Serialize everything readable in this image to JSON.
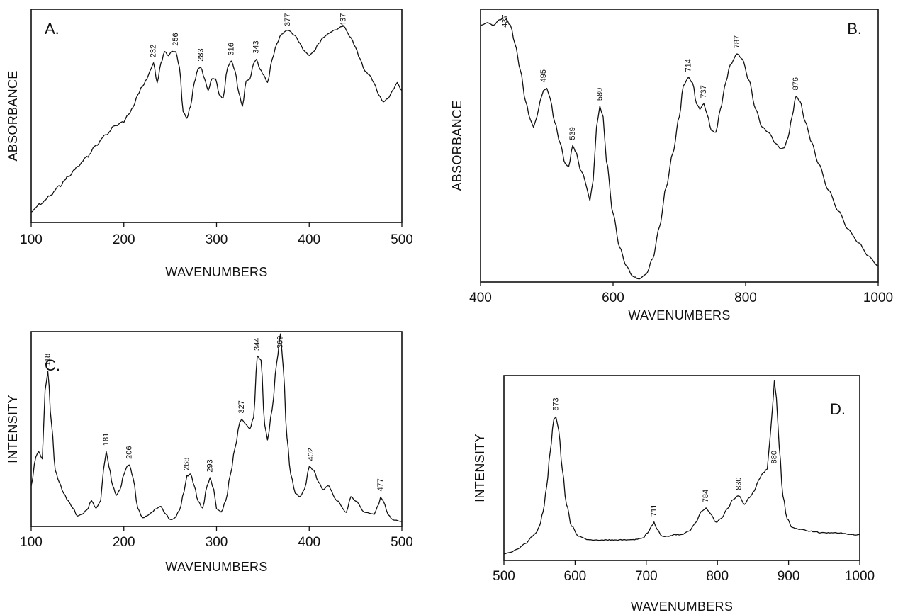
{
  "chart_data": [
    {
      "type": "line",
      "panel": "A.",
      "xlabel": "WAVENUMBERS",
      "ylabel": "ABSORBANCE",
      "xlim": [
        100,
        500
      ],
      "ylim": [
        0,
        1
      ],
      "xticks": [
        100,
        200,
        300,
        400,
        500
      ],
      "grid": false,
      "series": [
        {
          "x": [
            100,
            110,
            120,
            130,
            140,
            150,
            160,
            170,
            180,
            190,
            200,
            205,
            210,
            215,
            220,
            225,
            228,
            232,
            236,
            240,
            244,
            248,
            252,
            256,
            260,
            264,
            268,
            272,
            276,
            280,
            283,
            287,
            291,
            295,
            299,
            303,
            307,
            312,
            316,
            320,
            324,
            328,
            332,
            336,
            340,
            343,
            347,
            351,
            355,
            360,
            365,
            370,
            377,
            385,
            390,
            395,
            400,
            405,
            410,
            415,
            420,
            428,
            437,
            445,
            450,
            455,
            460,
            465,
            470,
            475,
            480,
            485,
            490,
            495,
            500
          ],
          "y": [
            0.04,
            0.08,
            0.12,
            0.17,
            0.22,
            0.27,
            0.32,
            0.38,
            0.43,
            0.48,
            0.5,
            0.54,
            0.58,
            0.64,
            0.68,
            0.72,
            0.76,
            0.8,
            0.7,
            0.8,
            0.86,
            0.84,
            0.86,
            0.86,
            0.78,
            0.55,
            0.52,
            0.58,
            0.7,
            0.77,
            0.78,
            0.72,
            0.66,
            0.72,
            0.72,
            0.64,
            0.62,
            0.78,
            0.81,
            0.76,
            0.65,
            0.58,
            0.71,
            0.72,
            0.8,
            0.82,
            0.77,
            0.74,
            0.7,
            0.82,
            0.9,
            0.95,
            0.97,
            0.94,
            0.9,
            0.86,
            0.84,
            0.86,
            0.9,
            0.93,
            0.95,
            0.97,
            0.99,
            0.93,
            0.88,
            0.82,
            0.76,
            0.74,
            0.7,
            0.64,
            0.6,
            0.62,
            0.66,
            0.7,
            0.66
          ]
        }
      ],
      "annotations": [
        {
          "x": 232,
          "y": 0.8,
          "text": "232"
        },
        {
          "x": 256,
          "y": 0.86,
          "text": "256"
        },
        {
          "x": 283,
          "y": 0.78,
          "text": "283"
        },
        {
          "x": 316,
          "y": 0.81,
          "text": "316"
        },
        {
          "x": 343,
          "y": 0.82,
          "text": "343"
        },
        {
          "x": 377,
          "y": 0.97,
          "text": "377"
        },
        {
          "x": 437,
          "y": 0.99,
          "text": "437"
        }
      ]
    },
    {
      "type": "line",
      "panel": "B.",
      "xlabel": "WAVENUMBERS",
      "ylabel": "ABSORBANCE",
      "xlim": [
        400,
        1000
      ],
      "ylim": [
        0,
        1
      ],
      "xticks": [
        400,
        600,
        800,
        1000
      ],
      "grid": false,
      "series": [
        {
          "x": [
            400,
            410,
            420,
            428,
            437,
            445,
            452,
            460,
            468,
            475,
            480,
            485,
            490,
            495,
            500,
            505,
            512,
            520,
            528,
            533,
            539,
            545,
            550,
            555,
            560,
            565,
            570,
            575,
            580,
            585,
            590,
            600,
            610,
            620,
            630,
            640,
            645,
            650,
            660,
            670,
            680,
            690,
            700,
            706,
            714,
            720,
            726,
            731,
            737,
            742,
            748,
            755,
            762,
            770,
            777,
            787,
            795,
            805,
            815,
            825,
            835,
            845,
            852,
            858,
            864,
            870,
            876,
            882,
            890,
            900,
            910,
            925,
            940,
            955,
            970,
            985,
            1000
          ],
          "y": [
            0.97,
            0.98,
            0.97,
            0.99,
            1.0,
            0.97,
            0.9,
            0.8,
            0.68,
            0.61,
            0.58,
            0.62,
            0.68,
            0.72,
            0.73,
            0.69,
            0.6,
            0.52,
            0.44,
            0.43,
            0.51,
            0.48,
            0.42,
            0.4,
            0.35,
            0.3,
            0.38,
            0.58,
            0.66,
            0.62,
            0.45,
            0.25,
            0.12,
            0.05,
            0.01,
            0.0,
            0.01,
            0.02,
            0.08,
            0.2,
            0.35,
            0.48,
            0.62,
            0.74,
            0.77,
            0.75,
            0.67,
            0.65,
            0.67,
            0.63,
            0.57,
            0.56,
            0.65,
            0.75,
            0.82,
            0.86,
            0.84,
            0.76,
            0.65,
            0.58,
            0.56,
            0.52,
            0.5,
            0.5,
            0.54,
            0.62,
            0.7,
            0.68,
            0.6,
            0.52,
            0.44,
            0.34,
            0.26,
            0.19,
            0.14,
            0.09,
            0.05
          ]
        }
      ],
      "annotations": [
        {
          "x": 437,
          "y": 0.94,
          "text": "437"
        },
        {
          "x": 495,
          "y": 0.73,
          "text": "495"
        },
        {
          "x": 539,
          "y": 0.51,
          "text": "539"
        },
        {
          "x": 580,
          "y": 0.66,
          "text": "580"
        },
        {
          "x": 714,
          "y": 0.77,
          "text": "714"
        },
        {
          "x": 737,
          "y": 0.67,
          "text": "737"
        },
        {
          "x": 787,
          "y": 0.86,
          "text": "787"
        },
        {
          "x": 876,
          "y": 0.7,
          "text": "876"
        }
      ]
    },
    {
      "type": "line",
      "panel": "C.",
      "xlabel": "WAVENUMBERS",
      "ylabel": "INTENSITY",
      "xlim": [
        100,
        500
      ],
      "ylim": [
        0,
        1
      ],
      "xticks": [
        100,
        200,
        300,
        400,
        500
      ],
      "grid": false,
      "series": [
        {
          "x": [
            100,
            105,
            108,
            112,
            115,
            118,
            122,
            126,
            130,
            135,
            140,
            145,
            150,
            155,
            160,
            165,
            170,
            175,
            178,
            181,
            184,
            188,
            192,
            196,
            200,
            203,
            206,
            210,
            215,
            220,
            225,
            230,
            235,
            240,
            245,
            250,
            255,
            260,
            265,
            268,
            272,
            276,
            280,
            285,
            290,
            293,
            297,
            300,
            305,
            310,
            315,
            320,
            325,
            327,
            332,
            336,
            340,
            344,
            348,
            352,
            355,
            360,
            365,
            369,
            372,
            376,
            380,
            385,
            390,
            395,
            400,
            405,
            410,
            415,
            420,
            430,
            440,
            445,
            450,
            460,
            470,
            475,
            477,
            480,
            485,
            490,
            500
          ],
          "y": [
            0.2,
            0.35,
            0.38,
            0.34,
            0.7,
            0.8,
            0.52,
            0.28,
            0.22,
            0.16,
            0.12,
            0.08,
            0.04,
            0.05,
            0.07,
            0.12,
            0.08,
            0.12,
            0.28,
            0.38,
            0.3,
            0.2,
            0.15,
            0.18,
            0.26,
            0.3,
            0.31,
            0.24,
            0.08,
            0.03,
            0.04,
            0.06,
            0.08,
            0.09,
            0.05,
            0.02,
            0.03,
            0.07,
            0.17,
            0.25,
            0.26,
            0.2,
            0.12,
            0.08,
            0.2,
            0.24,
            0.18,
            0.08,
            0.06,
            0.12,
            0.26,
            0.4,
            0.53,
            0.55,
            0.52,
            0.5,
            0.56,
            0.88,
            0.86,
            0.52,
            0.44,
            0.6,
            0.85,
            1.0,
            0.82,
            0.45,
            0.26,
            0.16,
            0.14,
            0.18,
            0.3,
            0.28,
            0.22,
            0.18,
            0.2,
            0.12,
            0.06,
            0.14,
            0.12,
            0.06,
            0.05,
            0.1,
            0.14,
            0.12,
            0.05,
            0.02,
            0.01
          ]
        }
      ],
      "annotations": [
        {
          "x": 118,
          "y": 0.8,
          "text": "118"
        },
        {
          "x": 181,
          "y": 0.38,
          "text": "181"
        },
        {
          "x": 206,
          "y": 0.31,
          "text": "206"
        },
        {
          "x": 268,
          "y": 0.25,
          "text": "268"
        },
        {
          "x": 293,
          "y": 0.24,
          "text": "293"
        },
        {
          "x": 327,
          "y": 0.55,
          "text": "327"
        },
        {
          "x": 344,
          "y": 0.88,
          "text": "344"
        },
        {
          "x": 369,
          "y": 1.0,
          "text": "369"
        },
        {
          "x": 402,
          "y": 0.3,
          "text": "402"
        },
        {
          "x": 477,
          "y": 0.14,
          "text": "477"
        }
      ]
    },
    {
      "type": "line",
      "panel": "D.",
      "xlabel": "WAVENUMBERS",
      "ylabel": "INTENSITY",
      "xlim": [
        500,
        1000
      ],
      "ylim": [
        0,
        1
      ],
      "xticks": [
        500,
        600,
        700,
        800,
        900,
        1000
      ],
      "grid": false,
      "series": [
        {
          "x": [
            500,
            510,
            520,
            530,
            540,
            545,
            550,
            555,
            560,
            565,
            570,
            573,
            577,
            582,
            588,
            595,
            605,
            620,
            640,
            660,
            680,
            695,
            702,
            708,
            711,
            715,
            722,
            730,
            740,
            750,
            760,
            770,
            777,
            784,
            790,
            798,
            805,
            815,
            822,
            830,
            838,
            845,
            852,
            858,
            864,
            870,
            874,
            878,
            880,
            883,
            887,
            892,
            898,
            905,
            915,
            930,
            950,
            970,
            990,
            1000
          ],
          "y": [
            0.02,
            0.03,
            0.05,
            0.08,
            0.12,
            0.14,
            0.18,
            0.26,
            0.4,
            0.6,
            0.78,
            0.8,
            0.72,
            0.5,
            0.3,
            0.18,
            0.12,
            0.1,
            0.1,
            0.1,
            0.1,
            0.11,
            0.14,
            0.18,
            0.2,
            0.16,
            0.12,
            0.12,
            0.13,
            0.13,
            0.15,
            0.2,
            0.26,
            0.28,
            0.25,
            0.2,
            0.22,
            0.28,
            0.33,
            0.35,
            0.3,
            0.34,
            0.38,
            0.44,
            0.48,
            0.5,
            0.68,
            0.88,
            1.0,
            0.9,
            0.62,
            0.35,
            0.22,
            0.17,
            0.16,
            0.15,
            0.14,
            0.14,
            0.13,
            0.13
          ]
        }
      ],
      "annotations": [
        {
          "x": 573,
          "y": 0.8,
          "text": "573"
        },
        {
          "x": 711,
          "y": 0.2,
          "text": "711"
        },
        {
          "x": 784,
          "y": 0.28,
          "text": "784"
        },
        {
          "x": 830,
          "y": 0.35,
          "text": "830"
        },
        {
          "x": 880,
          "y": 0.5,
          "text": "880"
        }
      ]
    }
  ]
}
